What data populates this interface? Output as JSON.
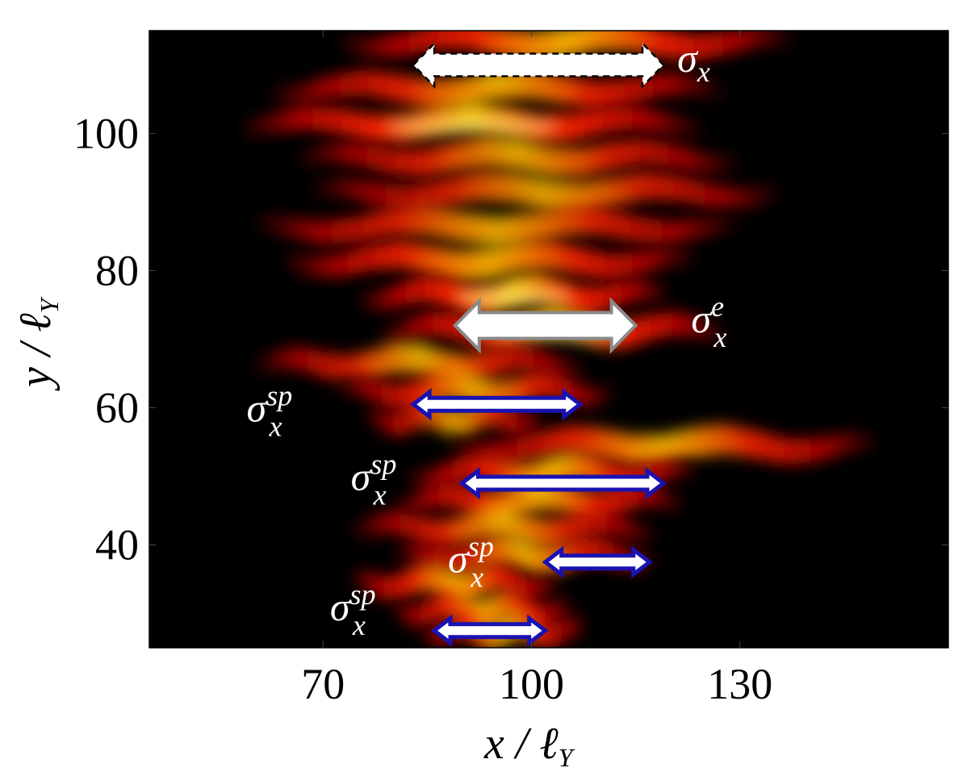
{
  "chart_data": {
    "type": "heatmap",
    "xlim": [
      45,
      160
    ],
    "ylim": [
      25,
      115
    ],
    "x_ticks": [
      70,
      100,
      130
    ],
    "y_ticks": [
      40,
      60,
      80,
      100
    ],
    "x_tick_labels": [
      "70",
      "100",
      "130"
    ],
    "y_tick_labels": [
      "40",
      "60",
      "80",
      "100"
    ],
    "xlabel": {
      "main": "x / ℓ",
      "sub": "Y"
    },
    "ylabel": {
      "main": "y / ℓ",
      "sub": "Y"
    },
    "colormap": [
      "#000000",
      "#5a0000",
      "#b80000",
      "#ff2200",
      "#ff7a00",
      "#ffd000",
      "#fff7a0"
    ],
    "bands": [
      {
        "y": 113,
        "x0": 72,
        "x1": 138,
        "peak": 0.9
      },
      {
        "y": 106,
        "x0": 62,
        "x1": 128,
        "peak": 0.8
      },
      {
        "y": 101,
        "x0": 58,
        "x1": 125,
        "peak": 0.95
      },
      {
        "y": 96,
        "x0": 66,
        "x1": 130,
        "peak": 0.7
      },
      {
        "y": 91,
        "x0": 68,
        "x1": 136,
        "peak": 0.65
      },
      {
        "y": 86,
        "x0": 60,
        "x1": 130,
        "peak": 0.7
      },
      {
        "y": 81,
        "x0": 64,
        "x1": 124,
        "peak": 0.85
      },
      {
        "y": 76,
        "x0": 75,
        "x1": 120,
        "peak": 1.0
      },
      {
        "y": 71,
        "x0": 78,
        "x1": 128,
        "peak": 0.95
      },
      {
        "y": 66,
        "x0": 60,
        "x1": 108,
        "peak": 0.7
      },
      {
        "y": 62,
        "x0": 72,
        "x1": 112,
        "peak": 0.75
      },
      {
        "y": 58,
        "x0": 76,
        "x1": 102,
        "peak": 0.6
      },
      {
        "y": 54,
        "x0": 88,
        "x1": 150,
        "peak": 0.8
      },
      {
        "y": 50,
        "x0": 82,
        "x1": 124,
        "peak": 0.85
      },
      {
        "y": 46,
        "x0": 80,
        "x1": 122,
        "peak": 0.8
      },
      {
        "y": 42,
        "x0": 74,
        "x1": 118,
        "peak": 0.7
      },
      {
        "y": 38,
        "x0": 80,
        "x1": 118,
        "peak": 0.75
      },
      {
        "y": 34,
        "x0": 74,
        "x1": 104,
        "peak": 0.85
      },
      {
        "y": 30,
        "x0": 80,
        "x1": 106,
        "peak": 0.8
      },
      {
        "y": 27,
        "x0": 84,
        "x1": 108,
        "peak": 0.7
      }
    ],
    "annotations": [
      {
        "label": "σ",
        "sub": "x",
        "sup": "",
        "style": "white-dashed",
        "x0": 83,
        "x1": 119,
        "y": 110,
        "label_x": 121,
        "label_y": 109
      },
      {
        "label": "σ",
        "sub": "x",
        "sup": "e",
        "style": "gray",
        "x0": 89,
        "x1": 115,
        "y": 72,
        "label_x": 123,
        "label_y": 71
      },
      {
        "label": "σ",
        "sub": "x",
        "sup": "sp",
        "style": "blue",
        "x0": 83,
        "x1": 107,
        "y": 60.5,
        "label_x": 59,
        "label_y": 58
      },
      {
        "label": "σ",
        "sub": "x",
        "sup": "sp",
        "style": "blue",
        "x0": 90,
        "x1": 119,
        "y": 49,
        "label_x": 74,
        "label_y": 48
      },
      {
        "label": "σ",
        "sub": "x",
        "sup": "sp",
        "style": "blue",
        "x0": 102,
        "x1": 117,
        "y": 37.5,
        "label_x": 88,
        "label_y": 36
      },
      {
        "label": "σ",
        "sub": "x",
        "sup": "sp",
        "style": "blue",
        "x0": 86,
        "x1": 102,
        "y": 27.5,
        "label_x": 71,
        "label_y": 29
      }
    ]
  }
}
